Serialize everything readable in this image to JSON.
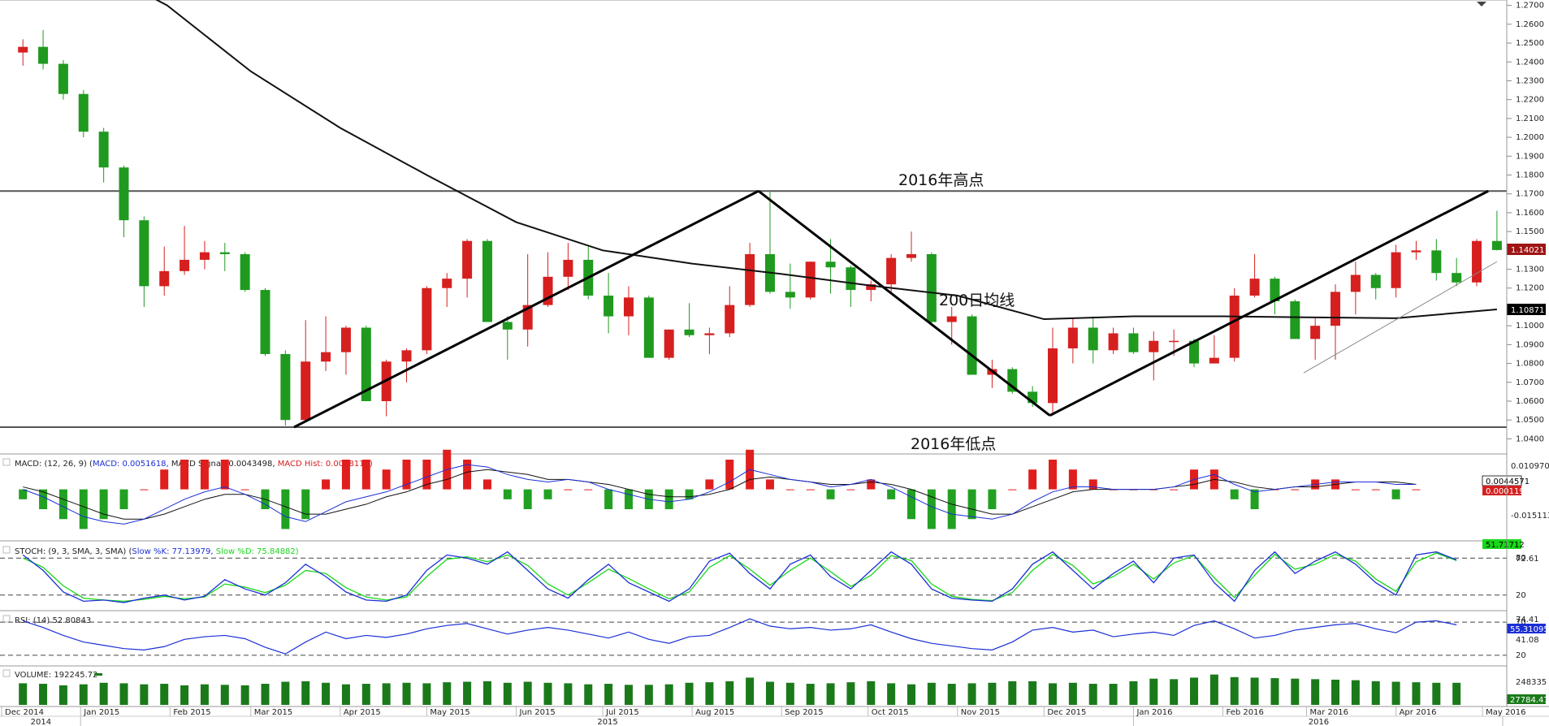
{
  "chart_data": [
    {
      "type": "candlestick",
      "instrument_note": "",
      "y_ticks": [
        "1.0400",
        "1.0500",
        "1.0600",
        "1.0700",
        "1.0800",
        "1.0900",
        "1.1000",
        "1.1100",
        "1.1200",
        "1.1300",
        "1.1400",
        "1.1500",
        "1.1600",
        "1.1700",
        "1.1800",
        "1.1900",
        "1.2000",
        "1.2100",
        "1.2200",
        "1.2300",
        "1.2400",
        "1.2500",
        "1.2600",
        "1.2700"
      ],
      "ylim": [
        1.035,
        1.272
      ],
      "price_tag": "1.14021",
      "ma_tag": "1.10871",
      "annotations": {
        "high_label": "2016年高点",
        "low_label": "2016年低点",
        "ma_label": "200日均线"
      },
      "levels": {
        "high": 1.1715,
        "low": 1.0462
      },
      "trendlines": [
        {
          "from": [
            "2015-03-16",
            1.0462
          ],
          "to": [
            "2015-08-24",
            1.1715
          ]
        },
        {
          "from": [
            "2015-08-24",
            1.1715
          ],
          "to": [
            "2015-12-03",
            1.0524
          ]
        },
        {
          "from": [
            "2015-12-03",
            1.0524
          ],
          "to": [
            "2016-05-03",
            1.1715
          ]
        },
        {
          "from": [
            "2016-02-29",
            1.075
          ],
          "to": [
            "2016-05-06",
            1.134
          ]
        }
      ],
      "ma200": [
        [
          "2014-12-31",
          1.295
        ],
        [
          "2015-01-31",
          1.27
        ],
        [
          "2015-03-01",
          1.235
        ],
        [
          "2015-04-01",
          1.205
        ],
        [
          "2015-05-01",
          1.18
        ],
        [
          "2015-06-01",
          1.155
        ],
        [
          "2015-07-01",
          1.14
        ],
        [
          "2015-08-01",
          1.133
        ],
        [
          "2015-09-01",
          1.1275
        ],
        [
          "2015-10-01",
          1.1215
        ],
        [
          "2015-11-01",
          1.116
        ],
        [
          "2015-12-01",
          1.1035
        ],
        [
          "2016-01-01",
          1.105
        ],
        [
          "2016-02-01",
          1.105
        ],
        [
          "2016-03-01",
          1.1045
        ],
        [
          "2016-04-01",
          1.104
        ],
        [
          "2016-05-06",
          1.1087
        ]
      ],
      "candles": [
        [
          "2014-12-12",
          1.245,
          1.252,
          1.238,
          1.248
        ],
        [
          "2014-12-19",
          1.248,
          1.257,
          1.236,
          1.239
        ],
        [
          "2014-12-26",
          1.239,
          1.241,
          1.22,
          1.223
        ],
        [
          "2015-01-02",
          1.223,
          1.225,
          1.2,
          1.203
        ],
        [
          "2015-01-09",
          1.203,
          1.205,
          1.176,
          1.184
        ],
        [
          "2015-01-16",
          1.184,
          1.185,
          1.147,
          1.156
        ],
        [
          "2015-01-23",
          1.156,
          1.158,
          1.11,
          1.121
        ],
        [
          "2015-01-30",
          1.121,
          1.142,
          1.116,
          1.129
        ],
        [
          "2015-02-06",
          1.129,
          1.153,
          1.127,
          1.135
        ],
        [
          "2015-02-13",
          1.135,
          1.145,
          1.13,
          1.139
        ],
        [
          "2015-02-20",
          1.139,
          1.144,
          1.129,
          1.138
        ],
        [
          "2015-02-27",
          1.138,
          1.139,
          1.118,
          1.119
        ],
        [
          "2015-03-06",
          1.119,
          1.12,
          1.084,
          1.085
        ],
        [
          "2015-03-13",
          1.085,
          1.087,
          1.047,
          1.05
        ],
        [
          "2015-03-20",
          1.05,
          1.103,
          1.049,
          1.081
        ],
        [
          "2015-03-27",
          1.081,
          1.105,
          1.076,
          1.086
        ],
        [
          "2015-04-03",
          1.086,
          1.1,
          1.074,
          1.099
        ],
        [
          "2015-04-10",
          1.099,
          1.1,
          1.06,
          1.06
        ],
        [
          "2015-04-17",
          1.06,
          1.082,
          1.052,
          1.081
        ],
        [
          "2015-04-24",
          1.081,
          1.088,
          1.07,
          1.087
        ],
        [
          "2015-05-01",
          1.087,
          1.121,
          1.085,
          1.12
        ],
        [
          "2015-05-08",
          1.12,
          1.128,
          1.11,
          1.125
        ],
        [
          "2015-05-15",
          1.125,
          1.146,
          1.115,
          1.145
        ],
        [
          "2015-05-22",
          1.145,
          1.146,
          1.102,
          1.102
        ],
        [
          "2015-05-29",
          1.102,
          1.105,
          1.082,
          1.098
        ],
        [
          "2015-06-05",
          1.098,
          1.138,
          1.089,
          1.111
        ],
        [
          "2015-06-12",
          1.111,
          1.139,
          1.11,
          1.126
        ],
        [
          "2015-06-19",
          1.126,
          1.144,
          1.119,
          1.135
        ],
        [
          "2015-06-26",
          1.135,
          1.142,
          1.114,
          1.116
        ],
        [
          "2015-07-03",
          1.116,
          1.128,
          1.096,
          1.105
        ],
        [
          "2015-07-10",
          1.105,
          1.121,
          1.095,
          1.115
        ],
        [
          "2015-07-17",
          1.115,
          1.116,
          1.083,
          1.083
        ],
        [
          "2015-07-24",
          1.083,
          1.098,
          1.082,
          1.098
        ],
        [
          "2015-07-31",
          1.098,
          1.112,
          1.094,
          1.095
        ],
        [
          "2015-08-07",
          1.095,
          1.099,
          1.085,
          1.096
        ],
        [
          "2015-08-14",
          1.096,
          1.121,
          1.094,
          1.111
        ],
        [
          "2015-08-21",
          1.111,
          1.144,
          1.11,
          1.138
        ],
        [
          "2015-08-28",
          1.138,
          1.1715,
          1.117,
          1.118
        ],
        [
          "2015-09-04",
          1.118,
          1.133,
          1.109,
          1.115
        ],
        [
          "2015-09-11",
          1.115,
          1.134,
          1.114,
          1.134
        ],
        [
          "2015-09-18",
          1.134,
          1.146,
          1.117,
          1.131
        ],
        [
          "2015-09-25",
          1.131,
          1.132,
          1.11,
          1.119
        ],
        [
          "2015-10-02",
          1.119,
          1.124,
          1.113,
          1.122
        ],
        [
          "2015-10-09",
          1.122,
          1.138,
          1.117,
          1.136
        ],
        [
          "2015-10-16",
          1.136,
          1.15,
          1.134,
          1.138
        ],
        [
          "2015-10-23",
          1.138,
          1.139,
          1.1,
          1.102
        ],
        [
          "2015-10-30",
          1.102,
          1.11,
          1.09,
          1.105
        ],
        [
          "2015-11-06",
          1.105,
          1.106,
          1.074,
          1.074
        ],
        [
          "2015-11-13",
          1.074,
          1.082,
          1.067,
          1.077
        ],
        [
          "2015-11-20",
          1.077,
          1.078,
          1.064,
          1.065
        ],
        [
          "2015-11-27",
          1.065,
          1.068,
          1.057,
          1.059
        ],
        [
          "2015-12-04",
          1.059,
          1.099,
          1.0524,
          1.088
        ],
        [
          "2015-12-11",
          1.088,
          1.104,
          1.08,
          1.099
        ],
        [
          "2015-12-18",
          1.099,
          1.105,
          1.08,
          1.087
        ],
        [
          "2015-12-25",
          1.087,
          1.099,
          1.085,
          1.096
        ],
        [
          "2016-01-01",
          1.096,
          1.099,
          1.085,
          1.086
        ],
        [
          "2016-01-08",
          1.086,
          1.097,
          1.071,
          1.092
        ],
        [
          "2016-01-15",
          1.092,
          1.098,
          1.084,
          1.092
        ],
        [
          "2016-01-22",
          1.092,
          1.093,
          1.078,
          1.08
        ],
        [
          "2016-01-29",
          1.08,
          1.095,
          1.08,
          1.083
        ],
        [
          "2016-02-05",
          1.083,
          1.12,
          1.081,
          1.116
        ],
        [
          "2016-02-12",
          1.116,
          1.138,
          1.115,
          1.125
        ],
        [
          "2016-02-19",
          1.125,
          1.126,
          1.106,
          1.113
        ],
        [
          "2016-02-26",
          1.113,
          1.114,
          1.093,
          1.093
        ],
        [
          "2016-03-04",
          1.093,
          1.104,
          1.082,
          1.1
        ],
        [
          "2016-03-11",
          1.1,
          1.122,
          1.082,
          1.118
        ],
        [
          "2016-03-18",
          1.118,
          1.134,
          1.106,
          1.127
        ],
        [
          "2016-03-25",
          1.127,
          1.128,
          1.114,
          1.12
        ],
        [
          "2016-04-01",
          1.12,
          1.143,
          1.115,
          1.139
        ],
        [
          "2016-04-08",
          1.139,
          1.145,
          1.135,
          1.14
        ],
        [
          "2016-04-15",
          1.14,
          1.146,
          1.124,
          1.128
        ],
        [
          "2016-04-22",
          1.128,
          1.136,
          1.121,
          1.123
        ],
        [
          "2016-04-29",
          1.123,
          1.146,
          1.121,
          1.145
        ],
        [
          "2016-05-06",
          1.145,
          1.161,
          1.14,
          1.1402
        ]
      ]
    },
    {
      "type": "macd",
      "label": "MACD: (12, 26, 9) (MACD: 0.0051618, MACD Signal: 0.0043498, MACD Hist: 0.0008119)",
      "label_parts": {
        "prefix": "MACD: (12, 26, 9) (",
        "macd": "MACD: 0.0051618,",
        "signal": " MACD Signal: 0.0043498,",
        "hist": " MACD Hist: 0.0008119)"
      },
      "y_ticks": [
        "0.0109705",
        "-0.0151139"
      ],
      "ylim": [
        -0.0175,
        0.012
      ],
      "tags": {
        "macd": "0.0044571",
        "hist": "0.0001192"
      },
      "macd": [
        0.0,
        -0.003,
        -0.007,
        -0.011,
        -0.013,
        -0.014,
        -0.012,
        -0.008,
        -0.004,
        -0.001,
        0.001,
        -0.002,
        -0.006,
        -0.011,
        -0.013,
        -0.009,
        -0.005,
        -0.003,
        -0.001,
        0.002,
        0.005,
        0.008,
        0.01,
        0.009,
        0.006,
        0.004,
        0.003,
        0.004,
        0.003,
        0.0,
        -0.002,
        -0.004,
        -0.005,
        -0.004,
        -0.001,
        0.003,
        0.008,
        0.006,
        0.004,
        0.003,
        0.001,
        0.002,
        0.004,
        0.001,
        -0.003,
        -0.007,
        -0.01,
        -0.011,
        -0.012,
        -0.01,
        -0.005,
        -0.001,
        0.001,
        0.001,
        0.0,
        0.0,
        0.0,
        0.001,
        0.004,
        0.006,
        0.002,
        -0.001,
        0.0,
        0.001,
        0.002,
        0.003,
        0.003,
        0.003,
        0.002,
        0.002
      ],
      "signal": [
        0.001,
        -0.001,
        -0.004,
        -0.007,
        -0.01,
        -0.012,
        -0.012,
        -0.01,
        -0.007,
        -0.004,
        -0.002,
        -0.002,
        -0.004,
        -0.007,
        -0.01,
        -0.01,
        -0.008,
        -0.006,
        -0.003,
        -0.001,
        0.002,
        0.004,
        0.007,
        0.008,
        0.007,
        0.006,
        0.004,
        0.004,
        0.003,
        0.002,
        0.0,
        -0.002,
        -0.003,
        -0.003,
        -0.002,
        0.0,
        0.004,
        0.005,
        0.004,
        0.003,
        0.002,
        0.002,
        0.003,
        0.002,
        0.0,
        -0.003,
        -0.006,
        -0.008,
        -0.01,
        -0.01,
        -0.007,
        -0.004,
        -0.001,
        0.0,
        0.0,
        0.0,
        0.0,
        0.001,
        0.002,
        0.004,
        0.003,
        0.001,
        0.0,
        0.001,
        0.001,
        0.002,
        0.003,
        0.003,
        0.003,
        0.002
      ]
    },
    {
      "type": "stochastic",
      "label_parts": {
        "prefix": "STOCH: (9, 3, SMA, 3, SMA) (",
        "k": "Slow %K: 77.13979,",
        "d": " Slow %D: 75.84882)"
      },
      "y_ticks": [
        "80",
        "20"
      ],
      "levels_text": [
        "72.61"
      ],
      "tags": {
        "k": "51.71712",
        "d": ""
      },
      "ylim": [
        0,
        100
      ],
      "k": [
        85,
        60,
        25,
        10,
        12,
        8,
        15,
        20,
        12,
        18,
        45,
        30,
        20,
        40,
        70,
        50,
        25,
        12,
        10,
        20,
        60,
        85,
        80,
        70,
        90,
        60,
        30,
        15,
        45,
        70,
        40,
        25,
        10,
        30,
        75,
        88,
        55,
        30,
        70,
        85,
        50,
        30,
        60,
        90,
        70,
        30,
        15,
        12,
        10,
        30,
        70,
        90,
        60,
        30,
        55,
        75,
        40,
        80,
        85,
        40,
        10,
        60,
        90,
        55,
        75,
        90,
        70,
        40,
        20,
        85,
        90,
        77
      ],
      "d": [
        80,
        65,
        35,
        15,
        12,
        10,
        13,
        18,
        14,
        17,
        38,
        33,
        24,
        36,
        60,
        55,
        32,
        17,
        12,
        17,
        50,
        78,
        82,
        74,
        85,
        68,
        38,
        20,
        40,
        62,
        47,
        30,
        14,
        25,
        65,
        84,
        62,
        36,
        60,
        80,
        58,
        34,
        52,
        84,
        76,
        38,
        18,
        13,
        11,
        24,
        60,
        86,
        68,
        38,
        50,
        70,
        46,
        72,
        84,
        48,
        16,
        52,
        86,
        62,
        70,
        86,
        75,
        46,
        26,
        74,
        88,
        76
      ]
    },
    {
      "type": "rsi",
      "label": "RSI: (14) 52.80843",
      "y_ticks": [
        "70",
        "20"
      ],
      "levels_text": [
        "74.41",
        "41.08"
      ],
      "tag": "55.31095",
      "ylim": [
        10,
        80
      ],
      "values": [
        72,
        62,
        50,
        40,
        35,
        30,
        28,
        33,
        44,
        48,
        50,
        45,
        32,
        22,
        40,
        55,
        45,
        50,
        47,
        52,
        60,
        65,
        68,
        60,
        52,
        58,
        62,
        58,
        52,
        46,
        55,
        44,
        38,
        48,
        50,
        62,
        75,
        64,
        60,
        62,
        58,
        60,
        66,
        55,
        45,
        38,
        34,
        30,
        28,
        40,
        58,
        62,
        55,
        58,
        48,
        52,
        55,
        50,
        65,
        72,
        60,
        46,
        50,
        58,
        62,
        66,
        68,
        60,
        54,
        70,
        72,
        66
      ]
    },
    {
      "type": "bar",
      "label": "VOLUME: 192245.72",
      "y_ticks": [
        "248335"
      ],
      "tag": "27784.47",
      "ylim": [
        0,
        300000
      ],
      "values": [
        210000,
        205000,
        190000,
        200000,
        215000,
        210000,
        200000,
        205000,
        190000,
        200000,
        195000,
        190000,
        205000,
        225000,
        230000,
        215000,
        200000,
        205000,
        210000,
        215000,
        210000,
        220000,
        225000,
        230000,
        215000,
        225000,
        215000,
        210000,
        200000,
        205000,
        195000,
        195000,
        200000,
        215000,
        220000,
        230000,
        265000,
        225000,
        215000,
        205000,
        210000,
        220000,
        230000,
        210000,
        200000,
        215000,
        205000,
        210000,
        215000,
        230000,
        230000,
        210000,
        215000,
        205000,
        205000,
        230000,
        255000,
        250000,
        265000,
        295000,
        270000,
        265000,
        260000,
        255000,
        250000,
        245000,
        240000,
        230000,
        225000,
        220000,
        215000,
        215000
      ]
    }
  ],
  "date_axis": {
    "labels": [
      "Dec 2014",
      "Jan 2015",
      "Feb 2015",
      "Mar 2015",
      "Apr 2015",
      "May 2015",
      "Jun 2015",
      "Jul 2015",
      "Aug 2015",
      "Sep 2015",
      "Oct 2015",
      "Nov 2015",
      "Dec 2015",
      "Jan 2016",
      "Feb 2016",
      "Mar 2016",
      "Apr 2016",
      "May 2016"
    ],
    "years": [
      "2014",
      "2015",
      "2016"
    ]
  },
  "colors": {
    "up": "#d62020",
    "down": "#1f9a1f",
    "macd_line": "#1b2fd6",
    "signal_line": "#111111",
    "stoch_k": "#1b2fd6",
    "stoch_d": "#18d818",
    "rsi": "#1b2fd6",
    "volume": "#1a7a1a",
    "price_tag": "#a01414",
    "ma_tag": "#000000"
  }
}
